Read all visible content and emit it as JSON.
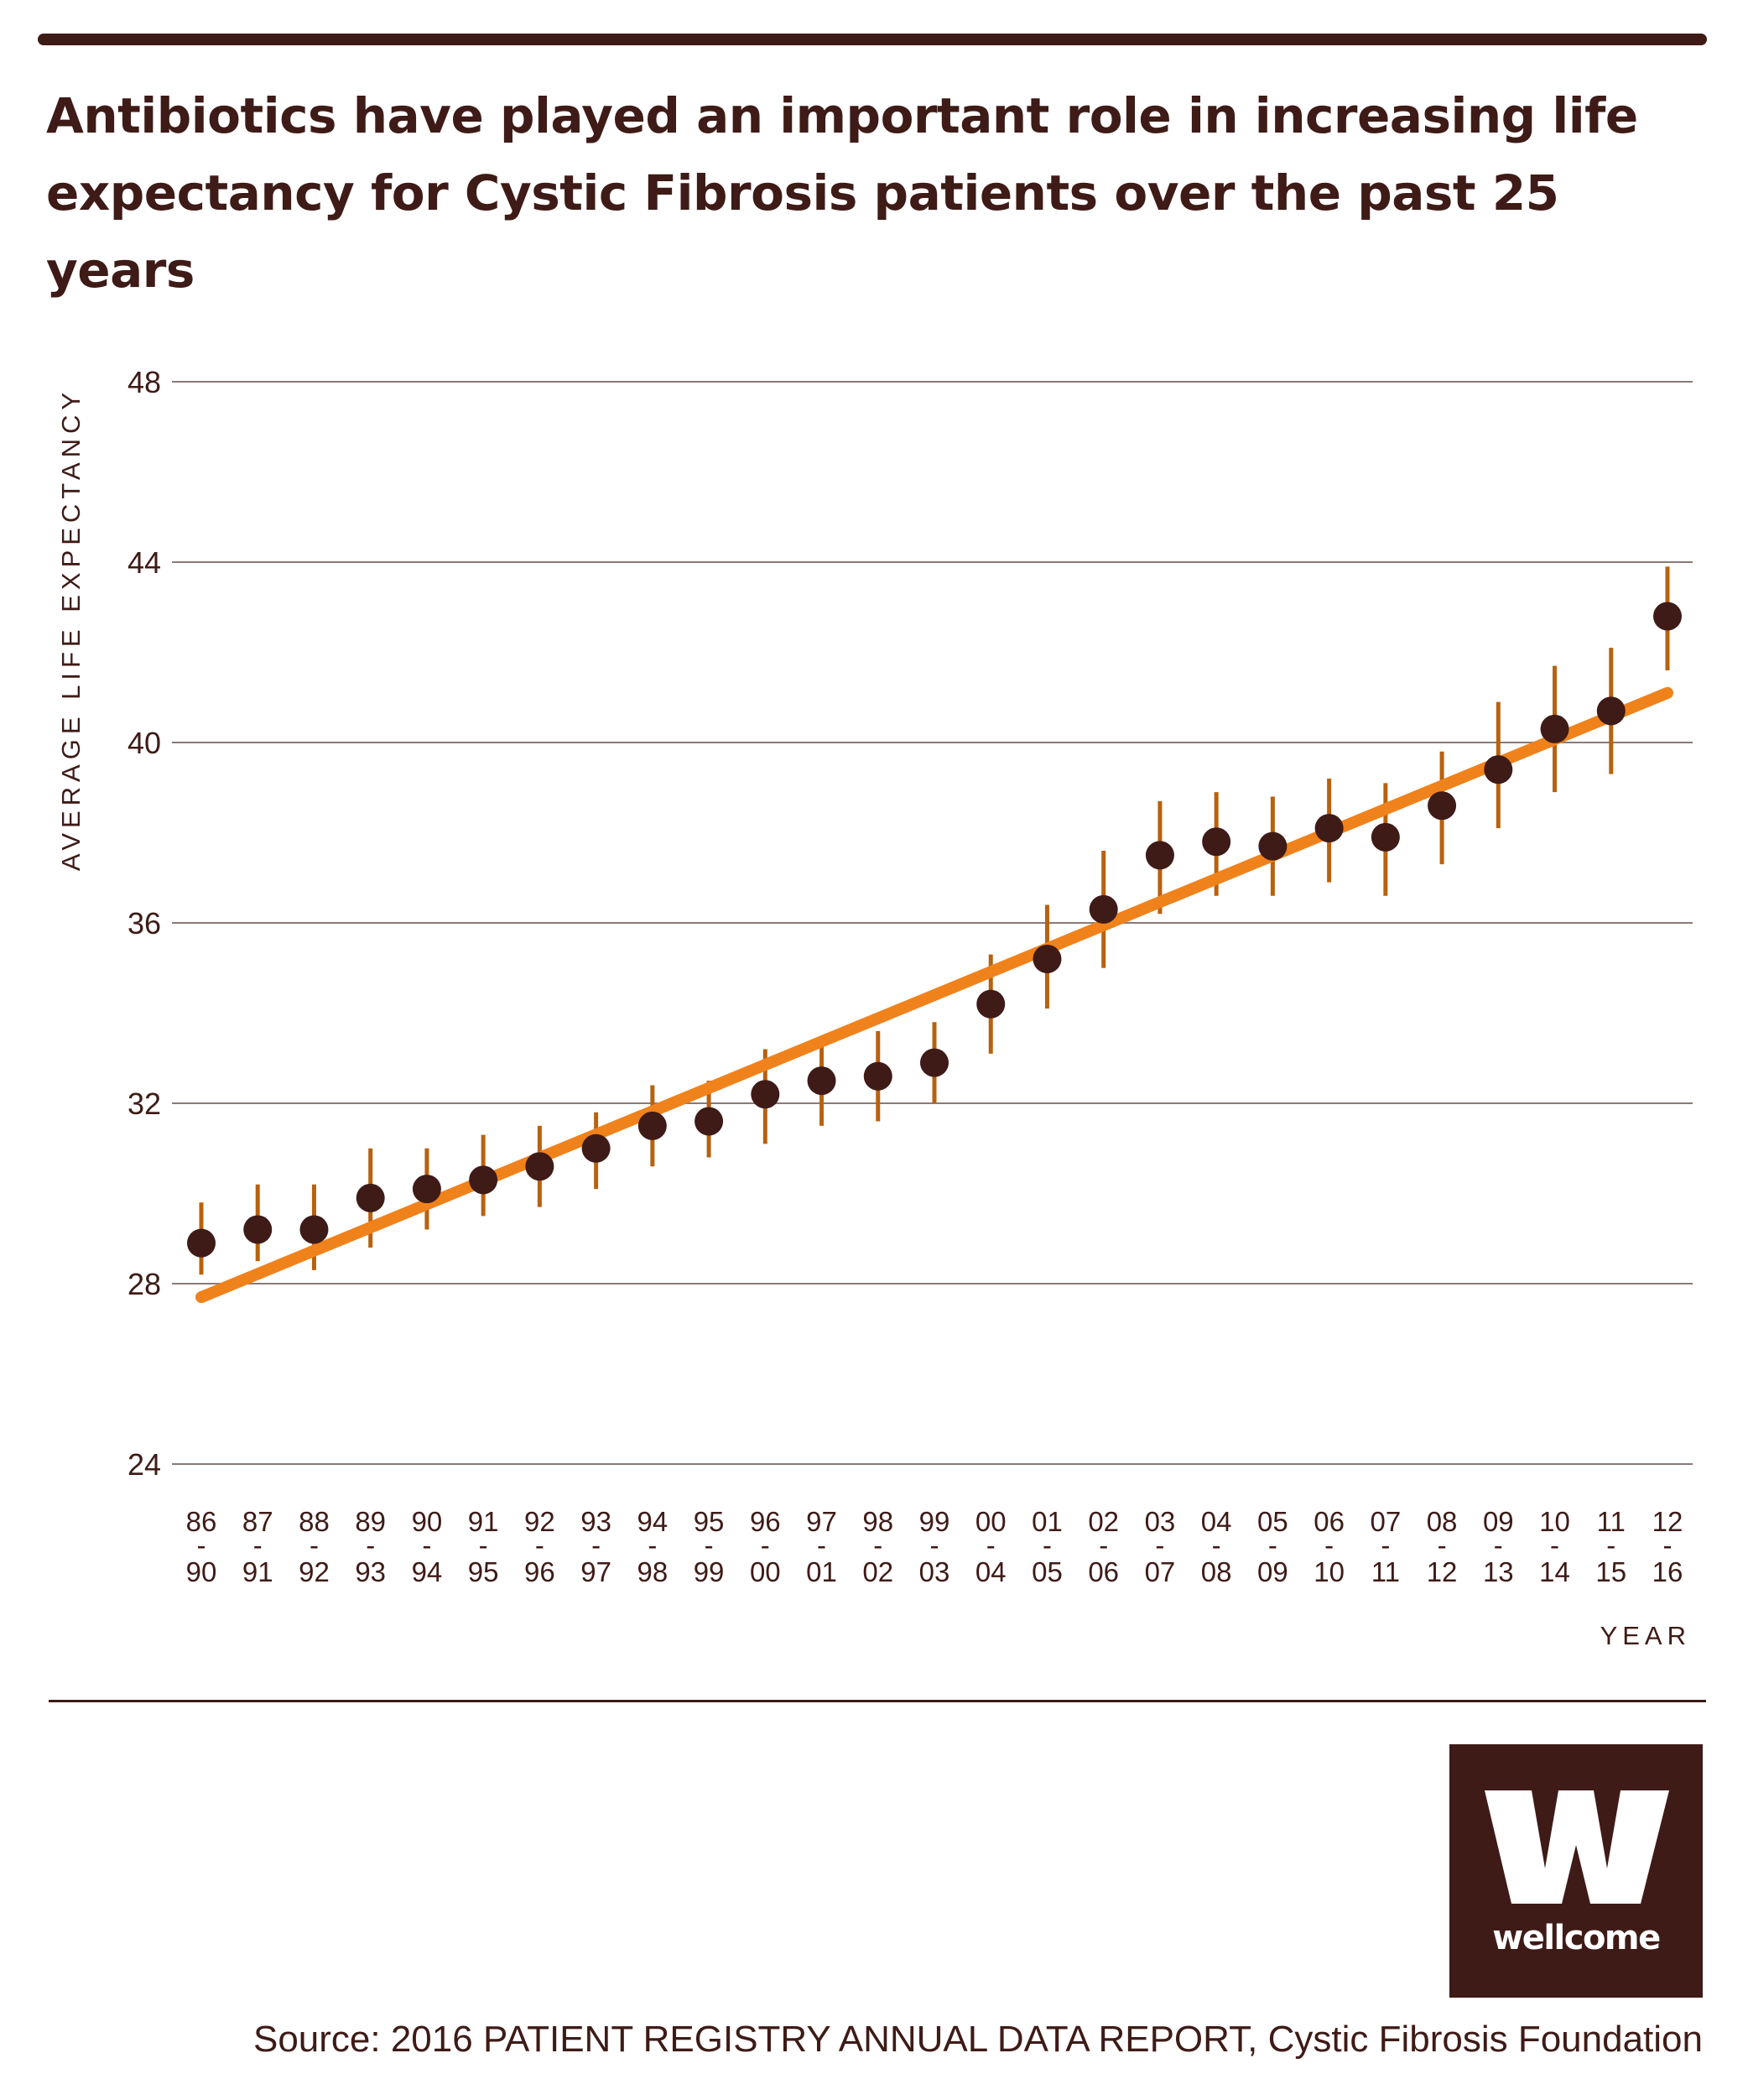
{
  "title": "Antibiotics have played an important role in increasing life expectancy for Cystic Fibrosis patients over the past 25 years",
  "source": "Source: 2016 PATIENT REGISTRY ANNUAL DATA REPORT, Cystic Fibrosis Foundation",
  "logo": {
    "icon": "wellcome-w-logo",
    "wordmark": "wellcome"
  },
  "colors": {
    "text": "#3e1b17",
    "point": "#3e1b17",
    "errorbar": "#b8610f",
    "trend": "#f0821c",
    "grid": "#8a7a78"
  },
  "chart_data": {
    "type": "scatter",
    "title": "Antibiotics have played an important role in increasing life expectancy for Cystic Fibrosis patients over the past 25 years",
    "xlabel": "YEAR",
    "ylabel": "AVERAGE LIFE EXPECTANCY",
    "ylim": [
      24,
      48
    ],
    "yticks": [
      24,
      28,
      32,
      36,
      40,
      44,
      48
    ],
    "grid": true,
    "categories": [
      {
        "start": "86",
        "sep": "-",
        "end": "90"
      },
      {
        "start": "87",
        "sep": "-",
        "end": "91"
      },
      {
        "start": "88",
        "sep": "-",
        "end": "92"
      },
      {
        "start": "89",
        "sep": "-",
        "end": "93"
      },
      {
        "start": "90",
        "sep": "-",
        "end": "94"
      },
      {
        "start": "91",
        "sep": "-",
        "end": "95"
      },
      {
        "start": "92",
        "sep": "-",
        "end": "96"
      },
      {
        "start": "93",
        "sep": "-",
        "end": "97"
      },
      {
        "start": "94",
        "sep": "-",
        "end": "98"
      },
      {
        "start": "95",
        "sep": "-",
        "end": "99"
      },
      {
        "start": "96",
        "sep": "-",
        "end": "00"
      },
      {
        "start": "97",
        "sep": "-",
        "end": "01"
      },
      {
        "start": "98",
        "sep": "-",
        "end": "02"
      },
      {
        "start": "99",
        "sep": "-",
        "end": "03"
      },
      {
        "start": "00",
        "sep": "-",
        "end": "04"
      },
      {
        "start": "01",
        "sep": "-",
        "end": "05"
      },
      {
        "start": "02",
        "sep": "-",
        "end": "06"
      },
      {
        "start": "03",
        "sep": "-",
        "end": "07"
      },
      {
        "start": "04",
        "sep": "-",
        "end": "08"
      },
      {
        "start": "05",
        "sep": "-",
        "end": "09"
      },
      {
        "start": "06",
        "sep": "-",
        "end": "10"
      },
      {
        "start": "07",
        "sep": "-",
        "end": "11"
      },
      {
        "start": "08",
        "sep": "-",
        "end": "12"
      },
      {
        "start": "09",
        "sep": "-",
        "end": "13"
      },
      {
        "start": "10",
        "sep": "-",
        "end": "14"
      },
      {
        "start": "11",
        "sep": "-",
        "end": "15"
      },
      {
        "start": "12",
        "sep": "-",
        "end": "16"
      }
    ],
    "values": [
      28.9,
      29.2,
      29.2,
      29.9,
      30.1,
      30.3,
      30.6,
      31.0,
      31.5,
      31.6,
      32.2,
      32.5,
      32.6,
      32.9,
      34.2,
      35.2,
      36.3,
      37.5,
      37.8,
      37.7,
      38.1,
      37.9,
      38.6,
      39.4,
      40.3,
      40.7,
      42.8
    ],
    "error_low": [
      28.2,
      28.5,
      28.3,
      28.8,
      29.2,
      29.5,
      29.7,
      30.1,
      30.6,
      30.8,
      31.1,
      31.5,
      31.6,
      32.0,
      33.1,
      34.1,
      35.0,
      36.2,
      36.6,
      36.6,
      36.9,
      36.6,
      37.3,
      38.1,
      38.9,
      39.3,
      41.6
    ],
    "error_high": [
      29.8,
      30.2,
      30.2,
      31.0,
      31.0,
      31.3,
      31.5,
      31.8,
      32.4,
      32.5,
      33.2,
      33.3,
      33.6,
      33.8,
      35.3,
      36.4,
      37.6,
      38.7,
      38.9,
      38.8,
      39.2,
      39.1,
      39.8,
      40.9,
      41.7,
      42.1,
      43.9
    ],
    "trend_line": {
      "start": 27.7,
      "end": 41.1
    }
  }
}
